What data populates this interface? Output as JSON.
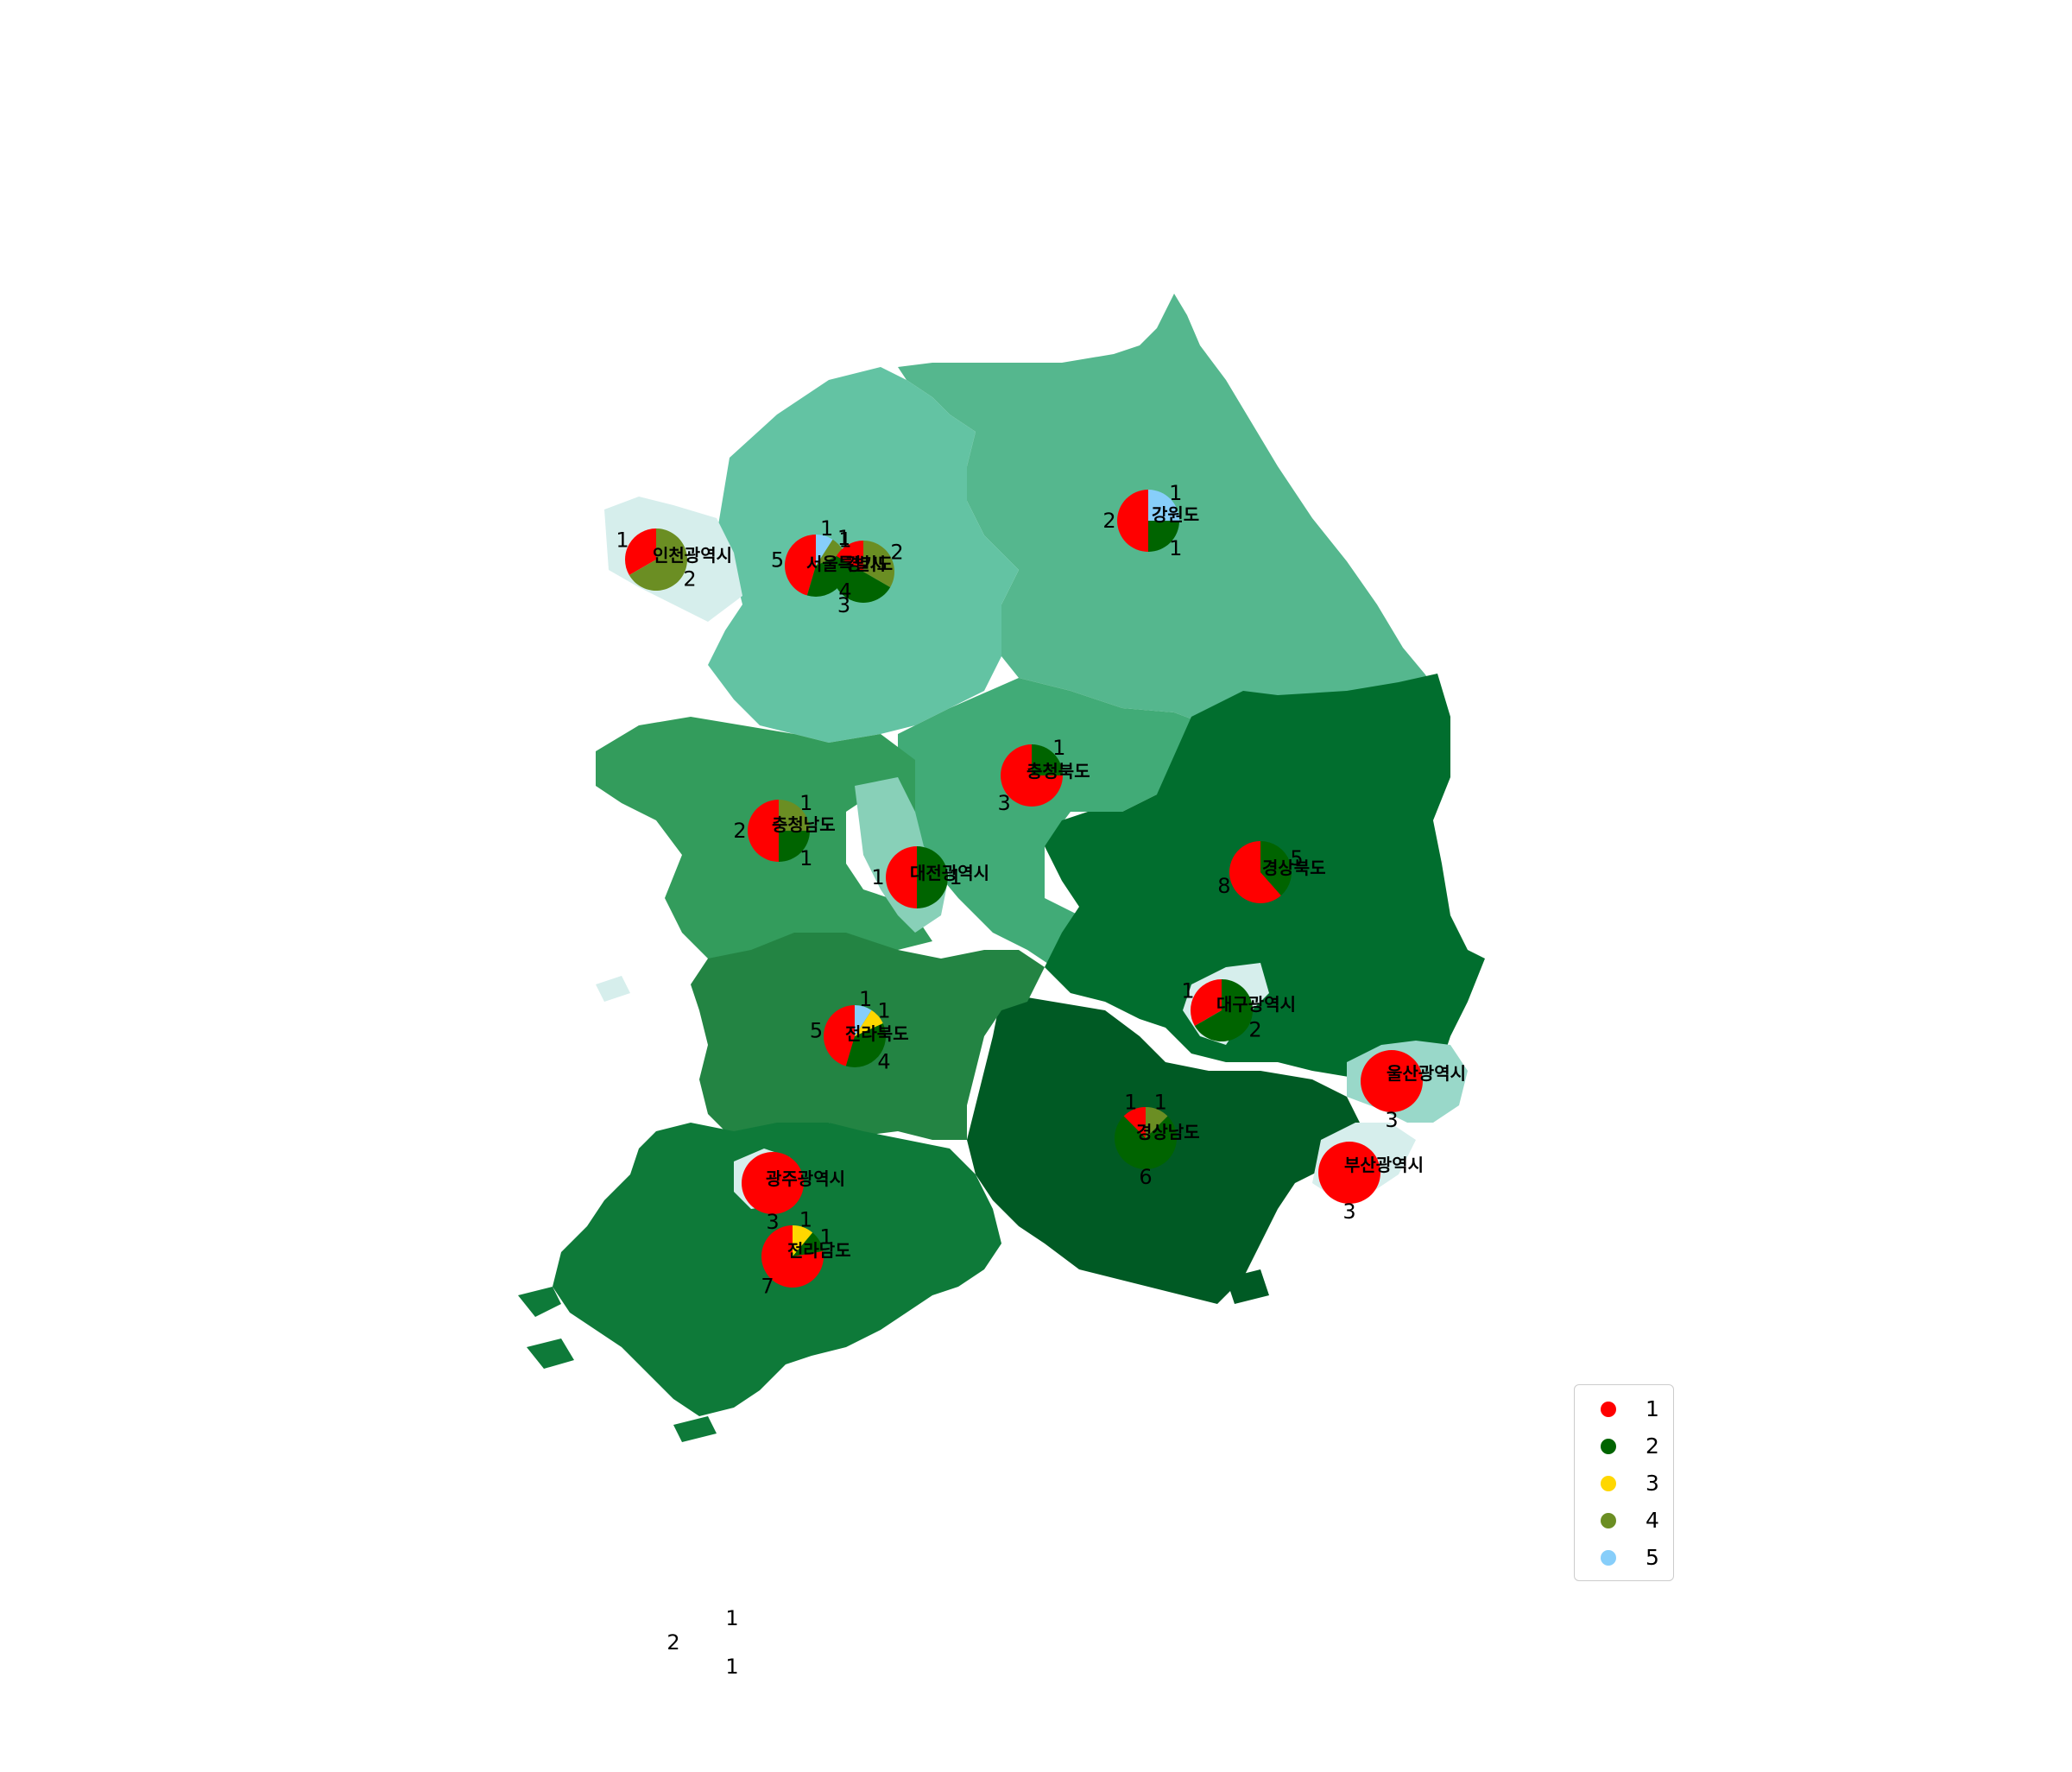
{
  "categories": [
    {
      "label": "1",
      "color": "#ff0000"
    },
    {
      "label": "2",
      "color": "#006400"
    },
    {
      "label": "3",
      "color": "#ffd700"
    },
    {
      "label": "4",
      "color": "#6b8e23"
    },
    {
      "label": "5",
      "color": "#87cefa"
    }
  ],
  "chart_data": {
    "type": "pie",
    "legend": {
      "position": "bottom-right",
      "entries": [
        "1",
        "2",
        "3",
        "4",
        "5"
      ]
    },
    "pies": [
      {
        "region": "서울특별시",
        "slices": [
          {
            "category": "1",
            "value": 5
          },
          {
            "category": "2",
            "value": 4
          },
          {
            "category": "4",
            "value": 1
          },
          {
            "category": "5",
            "value": 1
          }
        ]
      },
      {
        "region": "경기도",
        "slices": [
          {
            "category": "1",
            "value": 1
          },
          {
            "category": "2",
            "value": 3
          },
          {
            "category": "4",
            "value": 2
          }
        ]
      },
      {
        "region": "인천광역시",
        "slices": [
          {
            "category": "1",
            "value": 1
          },
          {
            "category": "4",
            "value": 2
          }
        ]
      },
      {
        "region": "강원도",
        "slices": [
          {
            "category": "1",
            "value": 2
          },
          {
            "category": "2",
            "value": 1
          },
          {
            "category": "5",
            "value": 1
          }
        ]
      },
      {
        "region": "충청북도",
        "slices": [
          {
            "category": "1",
            "value": 3
          },
          {
            "category": "2",
            "value": 1
          }
        ]
      },
      {
        "region": "충청남도",
        "slices": [
          {
            "category": "1",
            "value": 2
          },
          {
            "category": "2",
            "value": 1
          },
          {
            "category": "4",
            "value": 1
          }
        ]
      },
      {
        "region": "대전광역시",
        "slices": [
          {
            "category": "1",
            "value": 1
          },
          {
            "category": "2",
            "value": 1
          }
        ]
      },
      {
        "region": "경상북도",
        "slices": [
          {
            "category": "1",
            "value": 8
          },
          {
            "category": "2",
            "value": 5
          }
        ]
      },
      {
        "region": "대구광역시",
        "slices": [
          {
            "category": "1",
            "value": 1
          },
          {
            "category": "2",
            "value": 2
          }
        ]
      },
      {
        "region": "전라북도",
        "slices": [
          {
            "category": "1",
            "value": 5
          },
          {
            "category": "2",
            "value": 4
          },
          {
            "category": "3",
            "value": 1
          },
          {
            "category": "5",
            "value": 1
          }
        ]
      },
      {
        "region": "울산광역시",
        "slices": [
          {
            "category": "1",
            "value": 3
          }
        ]
      },
      {
        "region": "경상남도",
        "slices": [
          {
            "category": "1",
            "value": 1
          },
          {
            "category": "2",
            "value": 6
          },
          {
            "category": "4",
            "value": 1
          }
        ]
      },
      {
        "region": "부산광역시",
        "slices": [
          {
            "category": "1",
            "value": 3
          }
        ]
      },
      {
        "region": "광주광역시",
        "slices": [
          {
            "category": "1",
            "value": 3
          }
        ]
      },
      {
        "region": "전라남도",
        "slices": [
          {
            "category": "1",
            "value": 7
          },
          {
            "category": "2",
            "value": 1
          },
          {
            "category": "3",
            "value": 1
          }
        ]
      }
    ],
    "stray_labels": [
      "1",
      "2",
      "1"
    ]
  }
}
